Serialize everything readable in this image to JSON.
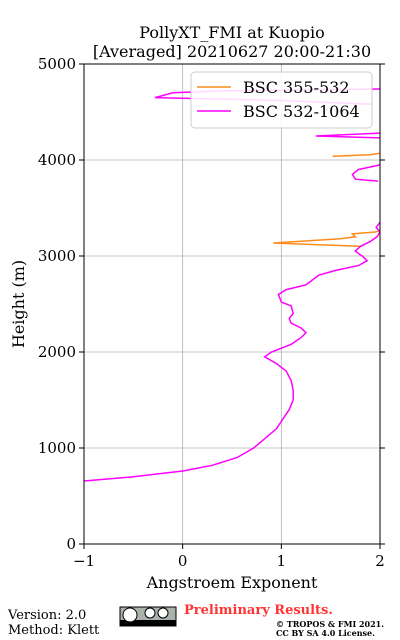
{
  "chart_data": {
    "type": "line",
    "title": "PollyXT_FMI at Kuopio",
    "subtitle": "[Averaged] 20210627 20:00-21:30",
    "x_label": "Angstroem Exponent",
    "y_label": "Height (m)",
    "xlim": [
      -1,
      2
    ],
    "ylim": [
      0,
      5000
    ],
    "xticks": [
      {
        "value": -1,
        "label": "−1"
      },
      0,
      1,
      2
    ],
    "yticks": [
      0,
      1000,
      2000,
      3000,
      4000,
      5000
    ],
    "grid": true,
    "legend": "upper right",
    "series": [
      {
        "name": "BSC 355-532",
        "color": "#ff8c1a",
        "x": [
          1.82,
          0.92,
          1.6,
          1.75,
          1.72,
          1.95,
          2.0,
          null,
          1.52,
          1.9,
          2.0
        ],
        "y": [
          3100,
          3135,
          3180,
          3200,
          3230,
          3250,
          3260,
          null,
          4040,
          4055,
          4070
        ]
      },
      {
        "name": "BSC 532-1064",
        "color": "#ff00ff",
        "x": [
          -1,
          -0.5,
          0,
          0.3,
          0.55,
          0.72,
          0.95,
          1.08,
          1.12,
          1.12,
          1.1,
          1.05,
          0.95,
          0.83,
          0.9,
          1.1,
          1.2,
          1.25,
          1.2,
          1.1,
          1.08,
          1.12,
          1.1,
          1.0,
          0.97,
          1.05,
          1.25,
          1.38,
          1.55,
          1.78,
          1.87,
          1.82,
          1.75,
          1.8,
          1.9,
          1.97,
          2.0,
          1.96,
          2.0,
          null,
          1.98,
          1.75,
          1.72,
          1.78,
          2.0,
          null,
          2.0,
          1.35,
          2.0,
          null,
          1.92,
          1.0,
          -0.28,
          -0.1,
          0.4,
          2.0
        ],
        "y": [
          656,
          700,
          760,
          820,
          900,
          1000,
          1200,
          1400,
          1500,
          1600,
          1700,
          1800,
          1880,
          1950,
          2000,
          2080,
          2150,
          2200,
          2250,
          2300,
          2350,
          2400,
          2480,
          2520,
          2600,
          2650,
          2700,
          2800,
          2850,
          2900,
          2950,
          3000,
          3050,
          3100,
          3150,
          3200,
          3250,
          3300,
          3350,
          null,
          3780,
          3800,
          3850,
          3900,
          3950,
          null,
          4230,
          4250,
          4280,
          null,
          4580,
          4620,
          4650,
          4700,
          4720,
          4740
        ]
      }
    ]
  },
  "footer": {
    "version": "Version: 2.0",
    "method": "Method: Klett",
    "preliminary": "Preliminary Results.",
    "copyright": "© TROPOS & FMI 2021.",
    "license": "CC BY SA 4.0 License."
  }
}
